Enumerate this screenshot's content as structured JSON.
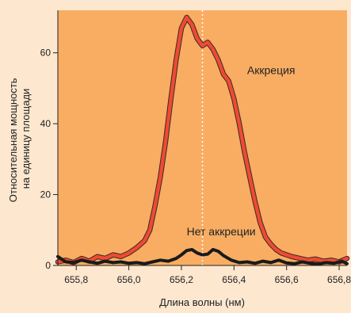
{
  "chart_data": {
    "type": "line",
    "xlabel": "Длина волны (нм)",
    "ylabel_lines": [
      "Относительная мощность",
      "на единицу площади"
    ],
    "xlim": [
      655.73,
      656.83
    ],
    "ylim": [
      0,
      72
    ],
    "x_ticks": [
      655.8,
      656.0,
      656.2,
      656.4,
      656.6,
      656.8
    ],
    "x_tick_labels": [
      "655,8",
      "656,0",
      "656,2",
      "656,4",
      "656,6",
      "656,8"
    ],
    "y_ticks": [
      0,
      20,
      40,
      60
    ],
    "y_tick_labels": [
      "0",
      "20",
      "40",
      "60"
    ],
    "grid": false,
    "reference_line": {
      "x": 656.28,
      "style": "dotted",
      "color": "#ffffff"
    },
    "colors": {
      "plot_bg": "#f8ad63",
      "page_bg": "#fde7cf",
      "accretion": "#ee4a34",
      "no_accretion": "#1a1a1a"
    },
    "annotations": [
      {
        "text": "Аккреция",
        "x": 656.45,
        "y": 54
      },
      {
        "text": "Нет аккреции",
        "x": 656.22,
        "y": 8.5
      }
    ],
    "series": [
      {
        "key": "accretion",
        "x": [
          655.73,
          655.76,
          655.79,
          655.82,
          655.85,
          655.88,
          655.91,
          655.94,
          655.97,
          656.0,
          656.03,
          656.06,
          656.08,
          656.1,
          656.12,
          656.14,
          656.16,
          656.18,
          656.2,
          656.22,
          656.24,
          656.26,
          656.28,
          656.3,
          656.32,
          656.34,
          656.36,
          656.38,
          656.4,
          656.42,
          656.44,
          656.46,
          656.48,
          656.5,
          656.52,
          656.54,
          656.56,
          656.58,
          656.6,
          656.62,
          656.65,
          656.68,
          656.71,
          656.74,
          656.77,
          656.8,
          656.83
        ],
        "y": [
          1.0,
          1.5,
          0.8,
          2.0,
          1.2,
          2.5,
          2.0,
          3.0,
          2.5,
          3.5,
          5.0,
          7.0,
          10.0,
          17.0,
          25.0,
          35.0,
          47.0,
          58.0,
          67.0,
          70.0,
          68.0,
          64.0,
          62.0,
          63.0,
          61.0,
          58.0,
          54.0,
          52.0,
          47.0,
          40.0,
          32.0,
          25.0,
          18.0,
          12.0,
          8.0,
          6.0,
          4.5,
          3.5,
          3.0,
          2.5,
          2.0,
          1.5,
          1.8,
          1.2,
          1.5,
          1.0,
          2.0
        ]
      },
      {
        "key": "no_accretion",
        "x": [
          655.73,
          655.76,
          655.79,
          655.82,
          655.85,
          655.88,
          655.91,
          655.94,
          655.97,
          656.0,
          656.03,
          656.06,
          656.09,
          656.12,
          656.15,
          656.18,
          656.2,
          656.22,
          656.24,
          656.26,
          656.28,
          656.3,
          656.32,
          656.34,
          656.36,
          656.39,
          656.42,
          656.45,
          656.48,
          656.51,
          656.54,
          656.57,
          656.6,
          656.63,
          656.66,
          656.69,
          656.72,
          656.75,
          656.78,
          656.81,
          656.83
        ],
        "y": [
          2.5,
          1.0,
          0.8,
          1.5,
          1.0,
          0.6,
          1.2,
          0.8,
          1.0,
          0.6,
          0.8,
          0.5,
          1.0,
          1.5,
          1.2,
          2.0,
          3.0,
          4.2,
          4.5,
          3.5,
          3.0,
          3.2,
          4.5,
          4.0,
          2.8,
          1.5,
          0.8,
          1.0,
          0.6,
          1.2,
          0.8,
          1.5,
          0.7,
          0.5,
          1.0,
          0.6,
          0.4,
          0.8,
          0.6,
          1.2,
          0.5
        ]
      }
    ]
  }
}
